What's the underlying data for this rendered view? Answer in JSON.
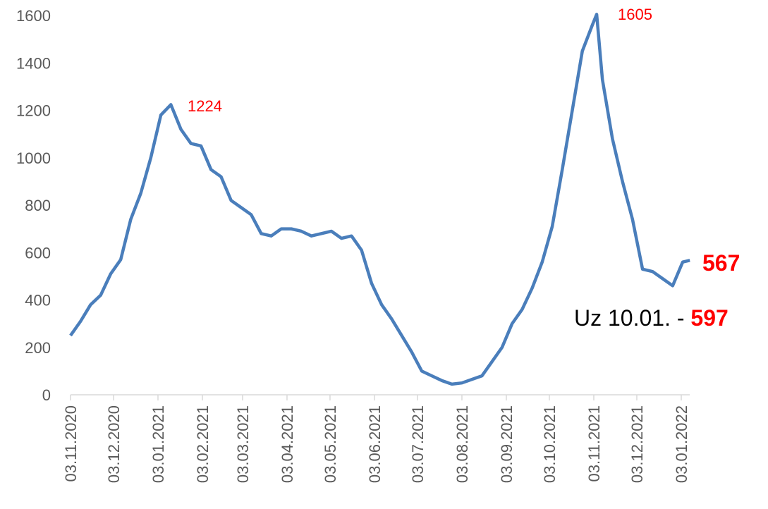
{
  "chart_data": {
    "type": "line",
    "x": [
      "03.11.2020",
      "10.11.2020",
      "17.11.2020",
      "24.11.2020",
      "01.12.2020",
      "08.12.2020",
      "15.12.2020",
      "22.12.2020",
      "29.12.2020",
      "05.01.2021",
      "12.01.2021",
      "19.01.2021",
      "26.01.2021",
      "02.02.2021",
      "09.02.2021",
      "16.02.2021",
      "23.02.2021",
      "02.03.2021",
      "09.03.2021",
      "16.03.2021",
      "23.03.2021",
      "30.03.2021",
      "06.04.2021",
      "13.04.2021",
      "20.04.2021",
      "27.04.2021",
      "04.05.2021",
      "11.05.2021",
      "18.05.2021",
      "25.05.2021",
      "01.06.2021",
      "08.06.2021",
      "15.06.2021",
      "22.06.2021",
      "29.06.2021",
      "06.07.2021",
      "13.07.2021",
      "20.07.2021",
      "27.07.2021",
      "03.08.2021",
      "10.08.2021",
      "17.08.2021",
      "24.08.2021",
      "31.08.2021",
      "07.09.2021",
      "14.09.2021",
      "21.09.2021",
      "28.09.2021",
      "05.10.2021",
      "12.10.2021",
      "19.10.2021",
      "26.10.2021",
      "02.11.2021",
      "05.11.2021",
      "09.11.2021",
      "16.11.2021",
      "23.11.2021",
      "30.11.2021",
      "07.12.2021",
      "14.12.2021",
      "21.12.2021",
      "28.12.2021",
      "04.01.2022",
      "09.01.2022"
    ],
    "series": [
      {
        "color": "#4a7ebb",
        "values": [
          250,
          310,
          380,
          420,
          510,
          570,
          740,
          850,
          1000,
          1180,
          1224,
          1120,
          1060,
          1050,
          950,
          920,
          820,
          790,
          760,
          680,
          670,
          700,
          700,
          690,
          670,
          680,
          690,
          660,
          670,
          610,
          470,
          380,
          320,
          250,
          180,
          100,
          80,
          60,
          45,
          50,
          65,
          80,
          140,
          200,
          300,
          360,
          450,
          560,
          710,
          950,
          1200,
          1450,
          1560,
          1605,
          1330,
          1080,
          900,
          740,
          530,
          520,
          490,
          460,
          560,
          567
        ]
      }
    ],
    "ylim": [
      0,
      1600
    ],
    "yticks": [
      0,
      200,
      400,
      600,
      800,
      1000,
      1200,
      1400,
      1600
    ],
    "xticks": [
      "03.11.2020",
      "03.12.2020",
      "03.01.2021",
      "03.02.2021",
      "03.03.2021",
      "03.04.2021",
      "03.05.2021",
      "03.06.2021",
      "03.07.2021",
      "03.08.2021",
      "03.09.2021",
      "03.10.2021",
      "03.11.2021",
      "03.12.2021",
      "03.01.2022"
    ],
    "annotations": {
      "first_peak": "1224",
      "second_peak": "1605",
      "last_value": "567",
      "note_prefix": "Uz 10.01. -",
      "note_value": "597"
    }
  }
}
